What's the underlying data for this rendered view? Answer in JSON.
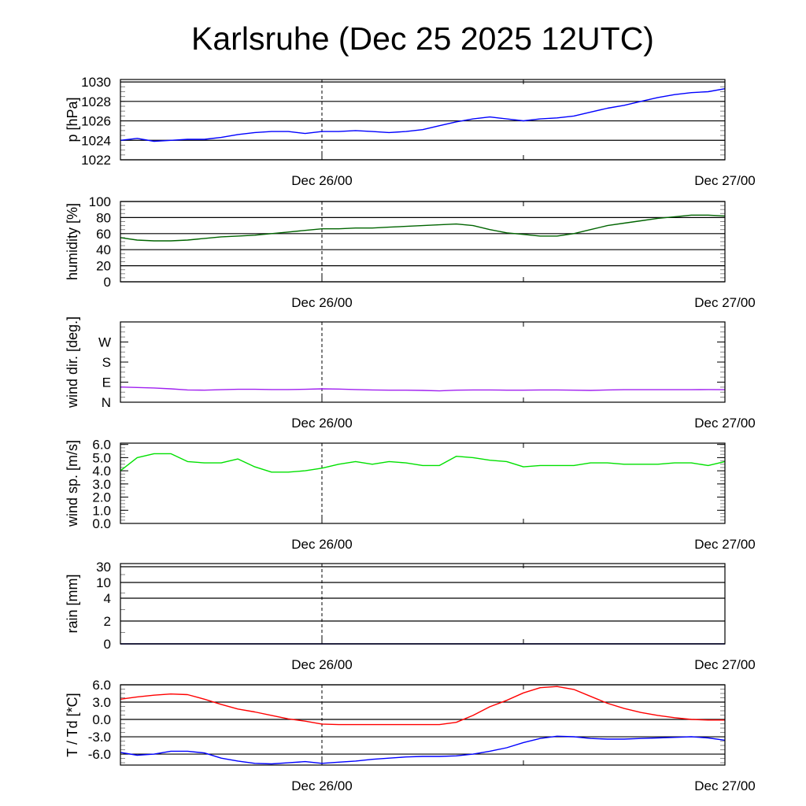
{
  "chart_data": {
    "title": "Karlsruhe (Dec 25 2025 12UTC)",
    "type": "line",
    "x_unit": "hours since Dec 25 12UTC",
    "x_range": [
      0,
      36
    ],
    "x_ticks": [
      {
        "x": 12,
        "label": "Dec 26/00"
      },
      {
        "x": 36,
        "label": "Dec 27/00"
      }
    ],
    "x_minor_ticks": [
      24
    ],
    "marker_line_x": 12,
    "panels": [
      {
        "name": "pressure",
        "ylabel": "p [hPa]",
        "ylim": [
          1022,
          1030.25
        ],
        "scale": "linear",
        "yticks": [
          {
            "v": 1022,
            "label": "1022"
          },
          {
            "v": 1024,
            "label": "1024"
          },
          {
            "v": 1026,
            "label": "1026"
          },
          {
            "v": 1028,
            "label": "1028"
          },
          {
            "v": 1030,
            "label": "1030"
          }
        ],
        "series": [
          {
            "name": "p",
            "color": "#0000ff",
            "values": [
              1024.0,
              1024.2,
              1023.9,
              1024.0,
              1024.1,
              1024.1,
              1024.3,
              1024.6,
              1024.8,
              1024.9,
              1024.9,
              1024.7,
              1024.9,
              1024.9,
              1025.0,
              1024.9,
              1024.8,
              1024.9,
              1025.1,
              1025.5,
              1025.9,
              1026.2,
              1026.4,
              1026.2,
              1026.0,
              1026.2,
              1026.3,
              1026.5,
              1026.9,
              1027.3,
              1027.6,
              1028.0,
              1028.4,
              1028.7,
              1028.9,
              1029.0,
              1029.3
            ]
          }
        ]
      },
      {
        "name": "humidity",
        "ylabel": "humidity [%]",
        "ylim": [
          0,
          100
        ],
        "scale": "linear",
        "yticks": [
          {
            "v": 0,
            "label": "0"
          },
          {
            "v": 20,
            "label": "20"
          },
          {
            "v": 40,
            "label": "40"
          },
          {
            "v": 60,
            "label": "60"
          },
          {
            "v": 80,
            "label": "80"
          },
          {
            "v": 100,
            "label": "100"
          }
        ],
        "series": [
          {
            "name": "humidity",
            "color": "#006400",
            "values": [
              55,
              52,
              51,
              51,
              52,
              54,
              56,
              57,
              58,
              60,
              62,
              64,
              66,
              66,
              67,
              67,
              68,
              69,
              70,
              71,
              72,
              70,
              65,
              61,
              59,
              57,
              57,
              60,
              65,
              70,
              73,
              76,
              79,
              81,
              83,
              83,
              82
            ]
          }
        ]
      },
      {
        "name": "wind-direction",
        "ylabel": "wind dir. [deg.]",
        "ylim": [
          0,
          360
        ],
        "scale": "linear",
        "nogrid": true,
        "yticks": [
          {
            "v": 0,
            "label": "N"
          },
          {
            "v": 90,
            "label": "E"
          },
          {
            "v": 180,
            "label": "S"
          },
          {
            "v": 270,
            "label": "W"
          }
        ],
        "series": [
          {
            "name": "wind-direction",
            "color": "#a020f0",
            "values": [
              68,
              66,
              64,
              60,
              55,
              54,
              56,
              58,
              58,
              57,
              57,
              58,
              60,
              59,
              57,
              55,
              54,
              54,
              53,
              51,
              54,
              55,
              55,
              54,
              54,
              55,
              55,
              54,
              53,
              55,
              56,
              56,
              56,
              56,
              56,
              57,
              56
            ]
          }
        ]
      },
      {
        "name": "wind-speed",
        "ylabel": "wind sp. [m/s]",
        "ylim": [
          0,
          6.1
        ],
        "scale": "linear",
        "nogrid": true,
        "yticks": [
          {
            "v": 0,
            "label": "0.0"
          },
          {
            "v": 1,
            "label": "1.0"
          },
          {
            "v": 2,
            "label": "2.0"
          },
          {
            "v": 3,
            "label": "3.0"
          },
          {
            "v": 4,
            "label": "4.0"
          },
          {
            "v": 5,
            "label": "5.0"
          },
          {
            "v": 6,
            "label": "6.0"
          }
        ],
        "series": [
          {
            "name": "wind-speed",
            "color": "#00e000",
            "values": [
              4.0,
              5.0,
              5.3,
              5.3,
              4.7,
              4.6,
              4.6,
              4.9,
              4.3,
              3.9,
              3.9,
              4.0,
              4.2,
              4.5,
              4.7,
              4.5,
              4.7,
              4.6,
              4.4,
              4.4,
              5.1,
              5.0,
              4.8,
              4.7,
              4.3,
              4.4,
              4.4,
              4.4,
              4.6,
              4.6,
              4.5,
              4.5,
              4.5,
              4.6,
              4.6,
              4.4,
              4.7
            ]
          }
        ]
      },
      {
        "name": "rain",
        "ylabel": "rain [mm]",
        "ylim": [
          0,
          30
        ],
        "scale": "custom",
        "yticks": [
          {
            "v": 0,
            "label": "0"
          },
          {
            "v": 2,
            "label": "2"
          },
          {
            "v": 4,
            "label": "4"
          },
          {
            "v": 10,
            "label": "10"
          },
          {
            "v": 30,
            "label": "30"
          }
        ],
        "series": [
          {
            "name": "rain",
            "color": "#00008b",
            "values": [
              0,
              0,
              0,
              0,
              0,
              0,
              0,
              0,
              0,
              0,
              0,
              0,
              0,
              0,
              0,
              0,
              0,
              0,
              0,
              0,
              0,
              0,
              0,
              0,
              0,
              0,
              0,
              0,
              0,
              0,
              0,
              0,
              0,
              0,
              0,
              0,
              0
            ]
          }
        ]
      },
      {
        "name": "temperature",
        "ylabel": "T / Td [*C]",
        "ylim": [
          -7.9,
          6
        ],
        "scale": "linear",
        "yticks": [
          {
            "v": -6,
            "label": "-6.0"
          },
          {
            "v": -3,
            "label": "-3.0"
          },
          {
            "v": 0,
            "label": "0.0"
          },
          {
            "v": 3,
            "label": "3.0"
          },
          {
            "v": 6,
            "label": "6.0"
          }
        ],
        "series": [
          {
            "name": "temperature",
            "color": "#ff0000",
            "values": [
              3.5,
              3.9,
              4.2,
              4.4,
              4.3,
              3.5,
              2.6,
              1.8,
              1.3,
              0.7,
              0.1,
              -0.3,
              -0.8,
              -0.9,
              -0.9,
              -0.9,
              -0.9,
              -0.9,
              -0.9,
              -0.9,
              -0.5,
              0.7,
              2.2,
              3.3,
              4.6,
              5.5,
              5.7,
              5.2,
              4.0,
              2.8,
              1.9,
              1.2,
              0.7,
              0.3,
              0.0,
              -0.1,
              -0.1
            ]
          },
          {
            "name": "dewpoint",
            "color": "#0000ff",
            "values": [
              -5.7,
              -6.2,
              -6.0,
              -5.5,
              -5.5,
              -5.8,
              -6.7,
              -7.2,
              -7.6,
              -7.7,
              -7.5,
              -7.3,
              -7.6,
              -7.4,
              -7.2,
              -6.9,
              -6.7,
              -6.5,
              -6.4,
              -6.4,
              -6.3,
              -6.0,
              -5.5,
              -4.9,
              -4.0,
              -3.3,
              -2.9,
              -3.0,
              -3.3,
              -3.4,
              -3.4,
              -3.3,
              -3.2,
              -3.1,
              -3.0,
              -3.2,
              -3.6
            ]
          }
        ]
      }
    ]
  }
}
